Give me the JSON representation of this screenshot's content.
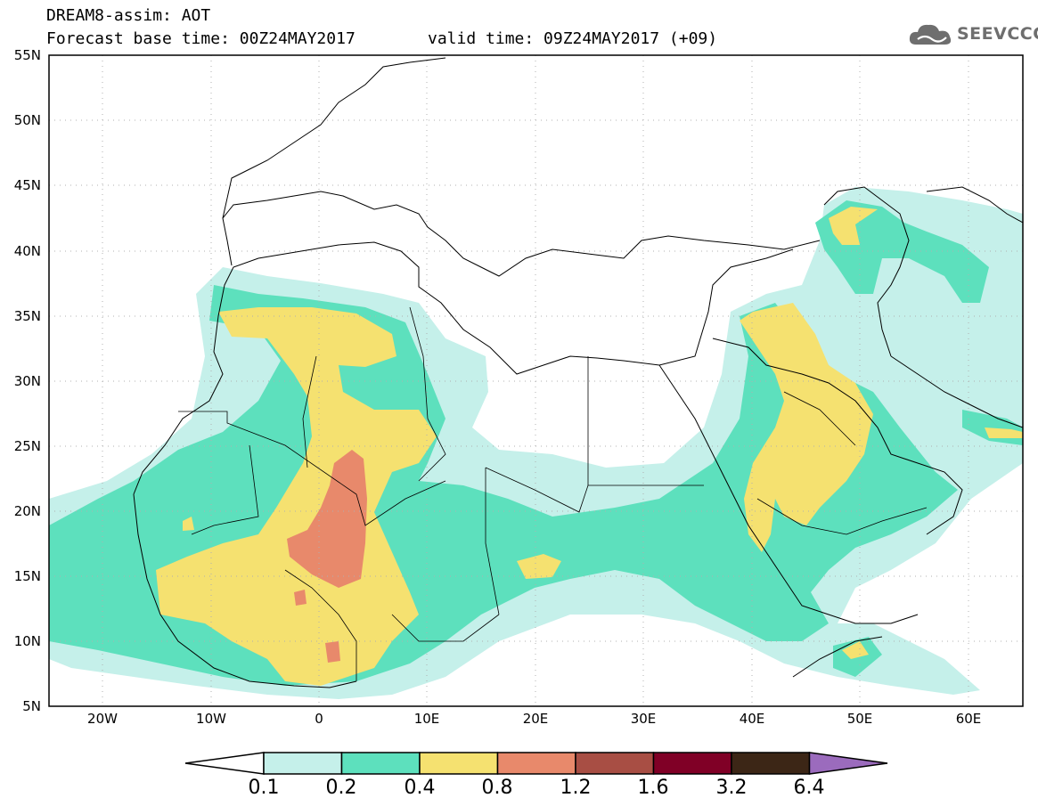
{
  "header": {
    "title": "DREAM8-assim: AOT",
    "base_time": "Forecast base time: 00Z24MAY2017",
    "valid_time": "valid time: 09Z24MAY2017 (+09)"
  },
  "logo": {
    "text": "SEEVCCC",
    "icon": "cloud-icon"
  },
  "map": {
    "lat_labels": [
      "55N",
      "50N",
      "45N",
      "40N",
      "35N",
      "30N",
      "25N",
      "20N",
      "15N",
      "10N",
      "5N"
    ],
    "lon_labels": [
      "20W",
      "10W",
      "0",
      "10E",
      "20E",
      "30E",
      "40E",
      "50E",
      "60E"
    ],
    "lat_range": [
      5,
      55
    ],
    "lon_range": [
      -25,
      65
    ],
    "grid": true
  },
  "colorbar": {
    "levels": [
      "0.1",
      "0.2",
      "0.4",
      "0.8",
      "1.2",
      "1.6",
      "3.2",
      "6.4"
    ],
    "colors": [
      "#ffffff",
      "#c5f0ea",
      "#5de0bd",
      "#f5e170",
      "#e8896b",
      "#a84e44",
      "#800026",
      "#3c2616",
      "#9b6bbd"
    ]
  },
  "palette": {
    "c1": "#c5f0ea",
    "c2": "#5de0bd",
    "c3": "#f5e170",
    "c4": "#e8896b",
    "c5": "#a84e44"
  }
}
